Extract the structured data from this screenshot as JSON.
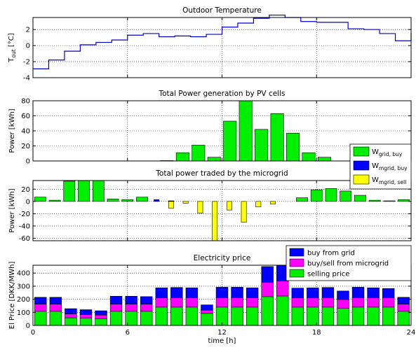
{
  "chart_data": [
    {
      "type": "line",
      "step": true,
      "title": "Outdoor Temperature",
      "ylabel": "T",
      "ylabel_sub": "out",
      "ylabel_unit": " [°C]",
      "xlim": [
        0,
        24
      ],
      "ylim": [
        -4,
        3.5
      ],
      "yticks": [
        -4,
        -2,
        0,
        2
      ],
      "grid": true,
      "series": [
        {
          "color": "#0000cc",
          "values": [
            -2.9,
            -1.8,
            -0.7,
            0.1,
            0.4,
            0.7,
            1.3,
            1.5,
            1.1,
            1.2,
            1.1,
            1.4,
            2.3,
            2.8,
            3.4,
            3.8,
            3.5,
            3.0,
            2.9,
            2.9,
            2.1,
            2.0,
            1.5,
            0.6,
            1.6
          ]
        }
      ]
    },
    {
      "type": "bar",
      "title": "Total Power generation by PV cells",
      "ylabel": "Power [kWh]",
      "xlim": [
        0,
        24
      ],
      "ylim": [
        0,
        80
      ],
      "yticks": [
        0,
        20,
        40,
        60,
        80
      ],
      "grid": true,
      "color": "#00ee00",
      "values": [
        0,
        0,
        0,
        0,
        0,
        0,
        0,
        0,
        0.5,
        11,
        21,
        5,
        53,
        80,
        42,
        63,
        37,
        11,
        5,
        0,
        0,
        0,
        0,
        0
      ]
    },
    {
      "type": "bar",
      "title": "Total power traded by the microgrid",
      "ylabel": "Power [kWh]",
      "xlim": [
        0,
        24
      ],
      "ylim": [
        -64,
        34
      ],
      "yticks": [
        -60,
        -40,
        -20,
        0,
        20
      ],
      "grid": true,
      "legend": {
        "placement": "right",
        "entries": [
          {
            "main": "W",
            "sub": "grid, buy",
            "color": "#00ee00"
          },
          {
            "main": "W",
            "sub": "mgrid, buy",
            "color": "#0000ff"
          },
          {
            "main": "W",
            "sub": "mgrid, sell",
            "color": "#ffff00"
          }
        ]
      },
      "series": [
        {
          "name": "W grid, buy",
          "color": "#00ee00",
          "values": [
            7,
            2,
            33,
            34,
            34,
            4,
            3,
            7,
            0,
            0,
            0,
            0,
            0,
            0,
            0,
            0,
            0,
            0,
            6,
            19,
            21,
            17,
            10,
            2,
            1,
            3
          ]
        },
        {
          "name": "W mgrid, buy",
          "color": "#0000ff",
          "values": [
            0,
            0,
            0,
            0,
            0,
            0,
            0,
            0,
            3,
            1,
            0,
            0,
            0,
            0,
            0,
            0,
            0,
            0,
            0,
            0,
            0,
            0,
            0,
            0,
            0,
            0
          ]
        },
        {
          "name": "W mgrid, sell",
          "color": "#ffff00",
          "values": [
            0,
            0,
            0,
            0,
            0,
            0,
            0,
            0,
            0,
            -11,
            -3,
            -19,
            -64,
            -14,
            -34,
            -9,
            -4,
            0,
            0,
            0,
            0,
            0,
            0,
            0,
            0,
            0
          ]
        }
      ]
    },
    {
      "type": "bar",
      "stacked": true,
      "title": "Electricity price",
      "xlabel": "time [h]",
      "ylabel": "El Price [DKK/MWh]",
      "xlim": [
        0,
        24
      ],
      "ylim": [
        0,
        460
      ],
      "yticks": [
        0,
        100,
        200,
        300,
        400
      ],
      "xticks": [
        0,
        6,
        12,
        18,
        24
      ],
      "grid": true,
      "legend": {
        "placement": "top-right",
        "entries": [
          {
            "label": "buy from grid",
            "color": "#0000ff"
          },
          {
            "label": "buy/sell from microgrid",
            "color": "#ff00ff"
          },
          {
            "label": "selling price",
            "color": "#00ee00"
          }
        ]
      },
      "series": [
        {
          "name": "selling price",
          "color": "#00ee00",
          "values": [
            108,
            108,
            58,
            55,
            52,
            108,
            108,
            108,
            140,
            140,
            140,
            92,
            140,
            140,
            140,
            220,
            225,
            140,
            140,
            140,
            130,
            140,
            140,
            140,
            108
          ]
        },
        {
          "name": "buy/sell from microgrid",
          "color": "#ff00ff",
          "values": [
            55,
            55,
            30,
            28,
            27,
            55,
            55,
            55,
            70,
            72,
            72,
            25,
            72,
            72,
            72,
            110,
            115,
            70,
            70,
            72,
            68,
            72,
            72,
            72,
            55
          ]
        },
        {
          "name": "buy from grid",
          "color": "#0000ff",
          "values": [
            52,
            52,
            40,
            37,
            33,
            60,
            60,
            57,
            77,
            78,
            75,
            40,
            80,
            80,
            75,
            120,
            120,
            75,
            77,
            78,
            65,
            80,
            75,
            70,
            52
          ]
        }
      ]
    }
  ]
}
